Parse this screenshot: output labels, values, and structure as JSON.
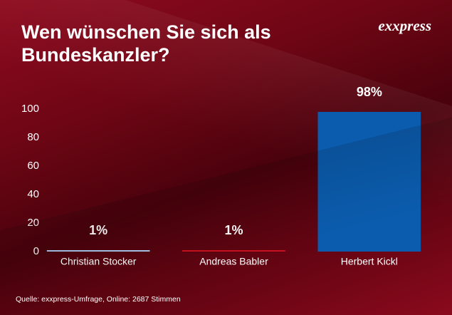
{
  "chart_data": {
    "type": "bar",
    "title": "Wen wünschen Sie sich als Bundeskanzler?",
    "brand": "exxpress",
    "source": "Quelle:  exxpress-Umfrage, Online: 2687 Stimmen",
    "categories": [
      "Christian Stocker",
      "Andreas Babler",
      "Herbert Kickl"
    ],
    "values": [
      1,
      1,
      98
    ],
    "value_labels": [
      "1%",
      "1%",
      "98%"
    ],
    "colors": [
      "#a9c6ee",
      "#c8101e",
      "#0b5cae"
    ],
    "ylim": [
      0,
      100
    ],
    "yticks": [
      0,
      20,
      40,
      60,
      80,
      100
    ],
    "grid": false
  }
}
